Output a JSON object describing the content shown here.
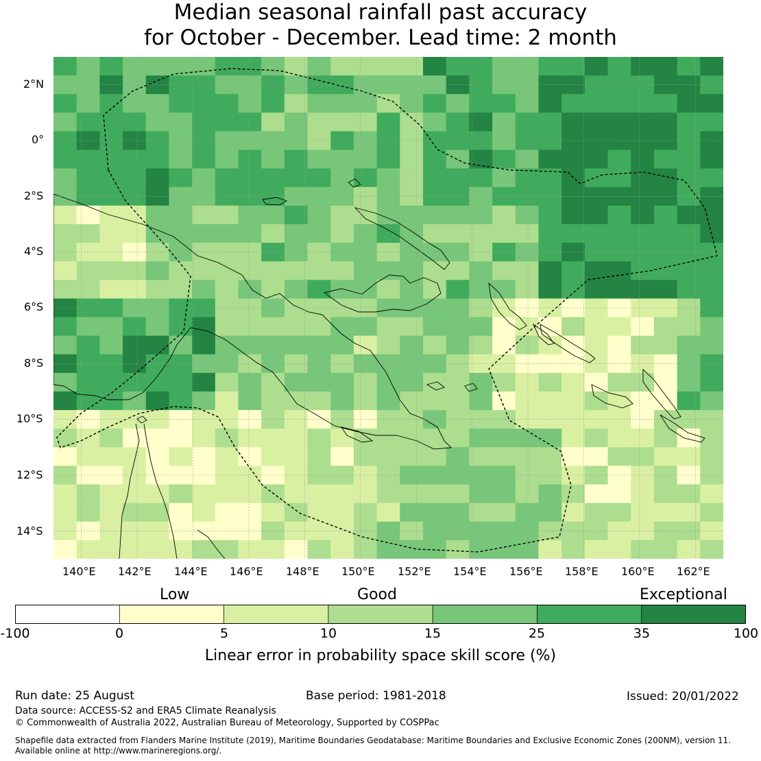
{
  "title": {
    "line1": "Median seasonal rainfall past accuracy",
    "line2": "for October - December. Lead time: 2 month"
  },
  "map": {
    "lon_range": [
      139,
      163
    ],
    "lat_range": [
      -15,
      3
    ],
    "lon_ticks": [
      "140°E",
      "142°E",
      "144°E",
      "146°E",
      "148°E",
      "150°E",
      "152°E",
      "154°E",
      "156°E",
      "158°E",
      "160°E",
      "162°E"
    ],
    "lat_ticks": [
      "2°N",
      "0°",
      "2°S",
      "4°S",
      "6°S",
      "8°S",
      "10°S",
      "12°S",
      "14°S"
    ],
    "level_colors": [
      "#ffffff",
      "#ffffcc",
      "#d9f0a3",
      "#addd8e",
      "#78c679",
      "#41ab5d",
      "#238443"
    ]
  },
  "colorbar": {
    "words": {
      "low": "Low",
      "good": "Good",
      "exceptional": "Exceptional"
    },
    "boundaries": [
      "-100",
      "0",
      "5",
      "10",
      "15",
      "25",
      "35",
      "100"
    ],
    "colors": [
      "#ffffff",
      "#ffffcc",
      "#d9f0a3",
      "#addd8e",
      "#78c679",
      "#41ab5d",
      "#238443"
    ],
    "label": "Linear error in probability space skill score (%)"
  },
  "footer": {
    "run_date": "Run date: 25 August",
    "base_period": "Base period: 1981-2018",
    "issued": "Issued: 20/01/2022",
    "data_source": "Data source: ACCESS-S2 and ERA5 Climate Reanalysis",
    "copyright": "© Commonwealth of Australia 2022, Australian Bureau of Meteorology, Supported by COSPPac",
    "shapefile_line1": "Shapefile data extracted from Flanders Marine Institute (2019), Maritime Boundaries Geodatabase: Maritime Boundaries and Exclusive Economic Zones (200NM), version 11.",
    "shapefile_line2": "Available online at http://www.marineregions.org/."
  }
}
